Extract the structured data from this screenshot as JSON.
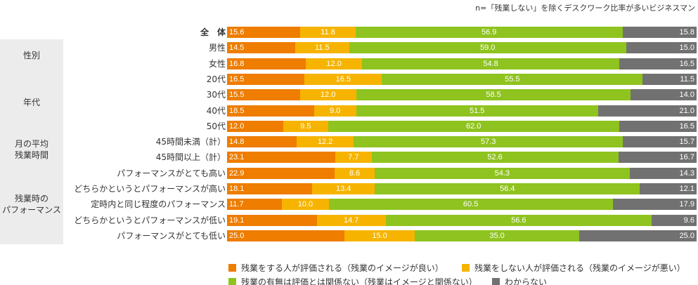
{
  "chart_data": {
    "type": "bar",
    "orientation": "horizontal-stacked-100",
    "note": "n=「残業しない」を除くデスクワーク比率が多いビジネスマン",
    "categories": [
      "全　体",
      "男性",
      "女性",
      "20代",
      "30代",
      "40代",
      "50代",
      "45時間未満（計）",
      "45時間以上（計）",
      "パフォーマンスがとても高い",
      "どちらかというとパフォーマンスが高い",
      "定時内と同じ程度のパフォーマンス",
      "どちらかというとパフォーマンスが低い",
      "パフォーマンスがとても低い"
    ],
    "groups": [
      {
        "label": "性別",
        "rows": [
          1,
          2
        ]
      },
      {
        "label": "年代",
        "rows": [
          3,
          4,
          5,
          6
        ]
      },
      {
        "label": "月の平均\n残業時間",
        "rows": [
          7,
          8
        ]
      },
      {
        "label": "残業時の\nパフォーマンス",
        "rows": [
          9,
          10,
          11,
          12,
          13
        ]
      }
    ],
    "series": [
      {
        "name": "残業をする人が評価される（残業のイメージが良い）",
        "color": "#ee7d00",
        "values": [
          15.6,
          14.5,
          16.8,
          16.5,
          15.5,
          18.5,
          12.0,
          14.8,
          23.1,
          22.9,
          18.1,
          11.7,
          19.1,
          25.0
        ]
      },
      {
        "name": "残業をしない人が評価される（残業のイメージが悪い）",
        "color": "#f6b400",
        "values": [
          11.8,
          11.5,
          12.0,
          16.5,
          12.0,
          9.0,
          9.5,
          12.2,
          7.7,
          8.6,
          13.4,
          10.0,
          14.7,
          15.0
        ]
      },
      {
        "name": "残業の有無は評価とは関係ない（残業はイメージと関係ない）",
        "color": "#8fc31f",
        "values": [
          56.9,
          59.0,
          54.8,
          55.5,
          58.5,
          51.5,
          62.0,
          57.3,
          52.6,
          54.3,
          56.4,
          60.5,
          56.6,
          35.0
        ]
      },
      {
        "name": "わからない",
        "color": "#727171",
        "values": [
          15.8,
          15.0,
          16.5,
          11.5,
          14.0,
          21.0,
          16.5,
          15.7,
          16.7,
          14.3,
          12.1,
          17.9,
          9.6,
          25.0
        ]
      }
    ],
    "unit": "%",
    "legend": "bottom"
  }
}
